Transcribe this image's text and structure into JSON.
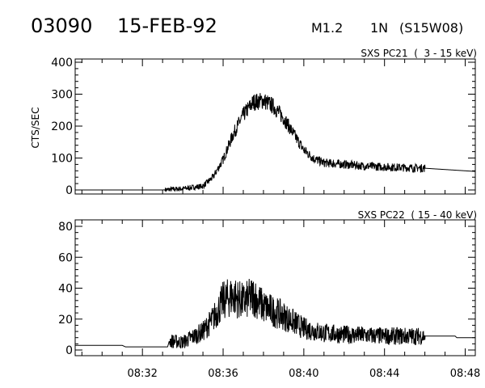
{
  "header": {
    "event": "03090",
    "date": "15-FEB-92",
    "class": "M1.2",
    "importance": "1N",
    "location": "(S15W08)"
  },
  "chart_data": [
    {
      "type": "line",
      "title": "SXS PC21  (  3 - 15 keV)",
      "ylabel": "CTS/SEC",
      "ylim": [
        0,
        400
      ],
      "yticks": [
        0,
        100,
        200,
        300,
        400
      ],
      "xlim": [
        "08:28:40",
        "08:48:30"
      ],
      "xticks": [
        "08:32",
        "08:36",
        "08:40",
        "08:44",
        "08:48"
      ],
      "noisy_until": "08:46:00",
      "series": [
        {
          "points": [
            [
              "08:28:40",
              0
            ],
            [
              "08:33:00",
              0
            ],
            [
              "08:34:00",
              4
            ],
            [
              "08:35:00",
              12
            ],
            [
              "08:35:30",
              40
            ],
            [
              "08:36:00",
              95
            ],
            [
              "08:36:30",
              175
            ],
            [
              "08:37:00",
              235
            ],
            [
              "08:37:30",
              275
            ],
            [
              "08:38:00",
              280
            ],
            [
              "08:38:30",
              262
            ],
            [
              "08:39:00",
              225
            ],
            [
              "08:39:30",
              175
            ],
            [
              "08:40:00",
              125
            ],
            [
              "08:40:30",
              98
            ],
            [
              "08:41:00",
              85
            ],
            [
              "08:42:00",
              80
            ],
            [
              "08:43:00",
              75
            ],
            [
              "08:44:00",
              72
            ],
            [
              "08:45:00",
              70
            ],
            [
              "08:46:00",
              68
            ],
            [
              "08:48:30",
              58
            ]
          ]
        }
      ]
    },
    {
      "type": "line",
      "title": "SXS PC22  ( 15 - 40 keV)",
      "ylabel": "",
      "ylim": [
        0,
        80
      ],
      "yticks": [
        0,
        20,
        40,
        60,
        80
      ],
      "xlim": [
        "08:28:40",
        "08:48:30"
      ],
      "xticks": [
        "08:32",
        "08:36",
        "08:40",
        "08:44",
        "08:48"
      ],
      "noisy_from": "08:33:20",
      "noisy_until": "08:46:00",
      "series": [
        {
          "points": [
            [
              "08:28:40",
              3
            ],
            [
              "08:31:00",
              3
            ],
            [
              "08:31:10",
              2
            ],
            [
              "08:33:15",
              2
            ],
            [
              "08:33:20",
              6
            ],
            [
              "08:34:00",
              5
            ],
            [
              "08:35:00",
              12
            ],
            [
              "08:35:30",
              20
            ],
            [
              "08:36:00",
              32
            ],
            [
              "08:36:30",
              35
            ],
            [
              "08:37:00",
              31
            ],
            [
              "08:37:30",
              35
            ],
            [
              "08:38:00",
              28
            ],
            [
              "08:39:00",
              22
            ],
            [
              "08:40:00",
              14
            ],
            [
              "08:41:00",
              11
            ],
            [
              "08:42:00",
              10
            ],
            [
              "08:44:00",
              9
            ],
            [
              "08:46:00",
              9
            ],
            [
              "08:46:05",
              9
            ],
            [
              "08:47:30",
              9
            ],
            [
              "08:47:35",
              8
            ],
            [
              "08:48:30",
              8
            ]
          ]
        }
      ]
    }
  ]
}
